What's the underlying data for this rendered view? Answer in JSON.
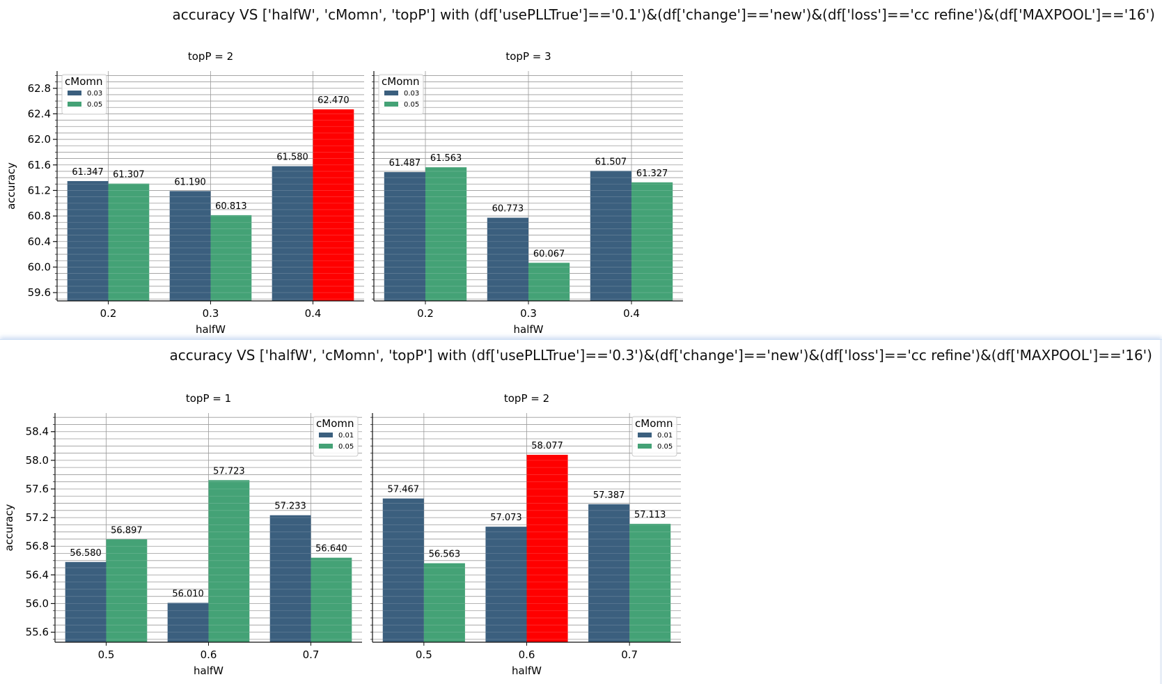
{
  "figures": [
    {
      "suptitle": "accuracy VS ['halfW', 'cMomn', 'topP'] with (df['usePLLTrue']=='0.1')&(df['change']=='new')&(df['loss']=='cc refine')&(df['MAXPOOL']=='16')"
    },
    {
      "suptitle": "accuracy VS ['halfW', 'cMomn', 'topP'] with (df['usePLLTrue']=='0.3')&(df['change']=='new')&(df['loss']=='cc refine')&(df['MAXPOOL']=='16')"
    }
  ],
  "colors": {
    "series_a": "#3b5f7e",
    "series_b": "#44a276",
    "highlight": "#ff0000"
  },
  "chart_data": [
    {
      "type": "bar",
      "title": "topP = 2",
      "xlabel": "halfW",
      "ylabel": "accuracy",
      "categories": [
        "0.2",
        "0.3",
        "0.4"
      ],
      "legend_title": "cMomn",
      "legend_position": "top-left",
      "series": [
        {
          "name": "0.03",
          "values": [
            61.347,
            61.19,
            61.58
          ]
        },
        {
          "name": "0.05",
          "values": [
            61.307,
            60.813,
            62.47
          ]
        }
      ],
      "value_labels": [
        [
          "61.347",
          "61.190",
          "61.580"
        ],
        [
          "61.307",
          "60.813",
          "62.470"
        ]
      ],
      "highlight": {
        "series": 1,
        "index": 2
      },
      "yticks": [
        "59.6",
        "60.0",
        "60.4",
        "60.8",
        "61.2",
        "61.6",
        "62.0",
        "62.4",
        "62.8"
      ],
      "ylim": [
        59.47,
        63.07
      ],
      "grid": true
    },
    {
      "type": "bar",
      "title": "topP = 3",
      "xlabel": "halfW",
      "ylabel": "",
      "categories": [
        "0.2",
        "0.3",
        "0.4"
      ],
      "legend_title": "cMomn",
      "legend_position": "top-left",
      "series": [
        {
          "name": "0.03",
          "values": [
            61.487,
            60.773,
            61.507
          ]
        },
        {
          "name": "0.05",
          "values": [
            61.563,
            60.067,
            61.327
          ]
        }
      ],
      "value_labels": [
        [
          "61.487",
          "60.773",
          "61.507"
        ],
        [
          "61.563",
          "60.067",
          "61.327"
        ]
      ],
      "highlight": null,
      "yticks": [],
      "ylim": [
        59.47,
        63.07
      ],
      "grid": true
    },
    {
      "type": "bar",
      "title": "topP = 1",
      "xlabel": "halfW",
      "ylabel": "accuracy",
      "categories": [
        "0.5",
        "0.6",
        "0.7"
      ],
      "legend_title": "cMomn",
      "legend_position": "top-right",
      "series": [
        {
          "name": "0.01",
          "values": [
            56.58,
            56.01,
            57.233
          ]
        },
        {
          "name": "0.05",
          "values": [
            56.897,
            57.723,
            56.64
          ]
        }
      ],
      "value_labels": [
        [
          "56.580",
          "56.010",
          "57.233"
        ],
        [
          "56.897",
          "57.723",
          "56.640"
        ]
      ],
      "highlight": null,
      "yticks": [
        "55.6",
        "56.0",
        "56.4",
        "56.8",
        "57.2",
        "57.6",
        "58.0",
        "58.4"
      ],
      "ylim": [
        55.46,
        58.66
      ],
      "grid": true
    },
    {
      "type": "bar",
      "title": "topP = 2",
      "xlabel": "halfW",
      "ylabel": "",
      "categories": [
        "0.5",
        "0.6",
        "0.7"
      ],
      "legend_title": "cMomn",
      "legend_position": "top-right",
      "series": [
        {
          "name": "0.01",
          "values": [
            57.467,
            57.073,
            57.387
          ]
        },
        {
          "name": "0.05",
          "values": [
            56.563,
            58.077,
            57.113
          ]
        }
      ],
      "value_labels": [
        [
          "57.467",
          "57.073",
          "57.387"
        ],
        [
          "56.563",
          "58.077",
          "57.113"
        ]
      ],
      "highlight": {
        "series": 1,
        "index": 1
      },
      "yticks": [],
      "ylim": [
        55.46,
        58.66
      ],
      "grid": true
    }
  ]
}
